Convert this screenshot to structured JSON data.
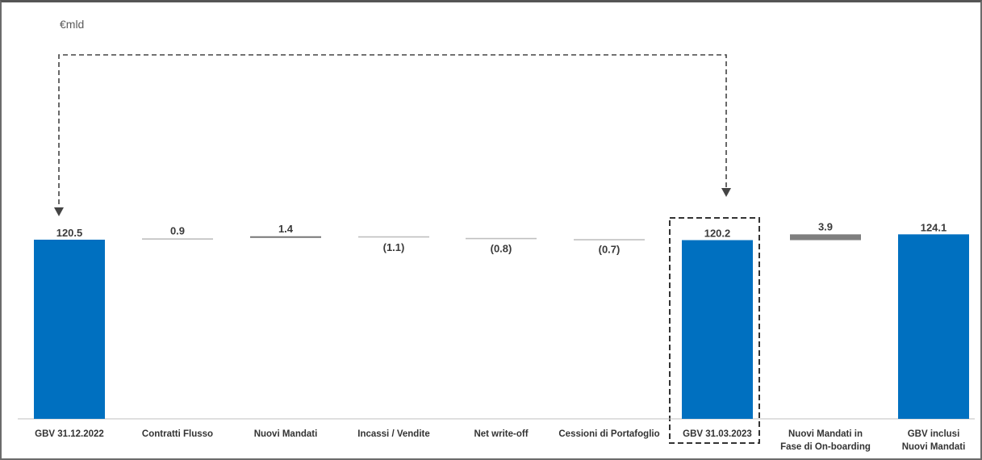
{
  "chart_data": {
    "type": "bar",
    "subtype": "waterfall",
    "unit_label": "€mld",
    "categories": [
      "GBV 31.12.2022",
      "Contratti Flusso",
      "Nuovi Mandati",
      "Incassi / Vendite",
      "Net write-off",
      "Cessioni di Portafoglio",
      "GBV 31.03.2023",
      "Nuovi Mandati in Fase di On-boarding",
      "GBV inclusi Nuovi Mandati"
    ],
    "category_lines": [
      [
        "GBV 31.12.2022"
      ],
      [
        "Contratti Flusso"
      ],
      [
        "Nuovi Mandati"
      ],
      [
        "Incassi / Vendite"
      ],
      [
        "Net write-off"
      ],
      [
        "Cessioni di Portafoglio"
      ],
      [
        "GBV 31.03.2023"
      ],
      [
        "Nuovi Mandati in",
        "Fase di On-boarding"
      ],
      [
        "GBV inclusi",
        "Nuovi Mandati"
      ]
    ],
    "values": [
      120.5,
      0.9,
      1.4,
      -1.1,
      -0.8,
      -0.7,
      120.2,
      3.9,
      124.1
    ],
    "value_labels": [
      "120.5",
      "0.9",
      "1.4",
      "(1.1)",
      "(0.8)",
      "(0.7)",
      "120.2",
      "3.9",
      "124.1"
    ],
    "kinds": [
      "total",
      "delta",
      "delta",
      "delta",
      "delta",
      "delta",
      "total",
      "delta",
      "total"
    ],
    "ylim": [
      0,
      130
    ],
    "colors": {
      "total": "#0070c0",
      "delta": "#bfbfbf",
      "delta_emphasis": "#7f7f7f"
    }
  }
}
